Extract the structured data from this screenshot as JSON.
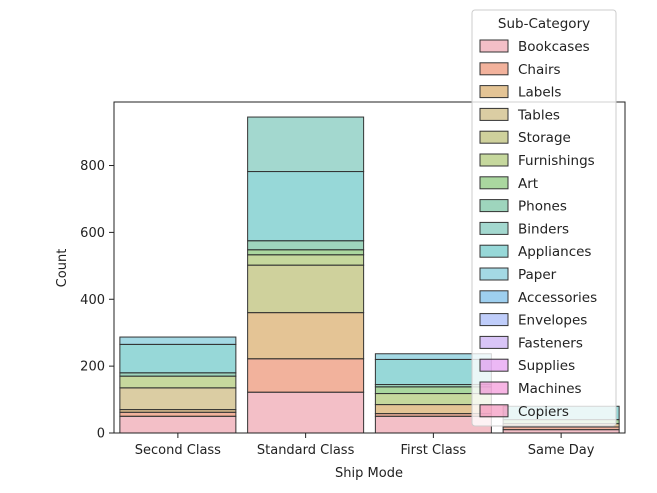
{
  "chart_data": {
    "type": "bar",
    "stacked": true,
    "overlapping": true,
    "xlabel": "Ship Mode",
    "ylabel": "Count",
    "categories": [
      "Second Class",
      "Standard Class",
      "First Class",
      "Same Day"
    ],
    "ylim": [
      0,
      990
    ],
    "yticks": [
      0,
      200,
      400,
      600,
      800
    ],
    "grid": false,
    "legend": {
      "title": "Sub-Category",
      "placement": "upper-right",
      "entries": [
        {
          "name": "Bookcases",
          "color": "#e8808f"
        },
        {
          "name": "Chairs",
          "color": "#e5663a"
        },
        {
          "name": "Labels",
          "color": "#c98a2c"
        },
        {
          "name": "Tables",
          "color": "#b89c48"
        },
        {
          "name": "Storage",
          "color": "#a0a33a"
        },
        {
          "name": "Furnishings",
          "color": "#8eb13c"
        },
        {
          "name": "Art",
          "color": "#55b040"
        },
        {
          "name": "Phones",
          "color": "#3dab7c"
        },
        {
          "name": "Binders",
          "color": "#47b2a0"
        },
        {
          "name": "Appliances",
          "color": "#2fb1b1"
        },
        {
          "name": "Paper",
          "color": "#4ab4c9"
        },
        {
          "name": "Accessories",
          "color": "#3d9fe0"
        },
        {
          "name": "Envelopes",
          "color": "#7f9cf5"
        },
        {
          "name": "Fasteners",
          "color": "#b38cf0"
        },
        {
          "name": "Supplies",
          "color": "#d972ec"
        },
        {
          "name": "Machines",
          "color": "#ef6cc9"
        },
        {
          "name": "Copiers",
          "color": "#f06ca6"
        }
      ]
    },
    "stacks": [
      {
        "category": "Second Class",
        "segments": [
          {
            "color": "#e8808f",
            "bottom": 0,
            "top": 50
          },
          {
            "color": "#e5663a",
            "bottom": 50,
            "top": 62
          },
          {
            "color": "#c98a2c",
            "bottom": 62,
            "top": 70
          },
          {
            "color": "#b89c48",
            "bottom": 70,
            "top": 135
          },
          {
            "color": "#8eb13c",
            "bottom": 135,
            "top": 170
          },
          {
            "color": "#3dab7c",
            "bottom": 170,
            "top": 180
          },
          {
            "color": "#2fb1b1",
            "bottom": 180,
            "top": 265
          },
          {
            "color": "#4ab4c9",
            "bottom": 265,
            "top": 287
          }
        ]
      },
      {
        "category": "Standard Class",
        "segments": [
          {
            "color": "#e8808f",
            "bottom": 0,
            "top": 122
          },
          {
            "color": "#e5663a",
            "bottom": 122,
            "top": 222
          },
          {
            "color": "#c98a2c",
            "bottom": 222,
            "top": 360
          },
          {
            "color": "#a0a33a",
            "bottom": 360,
            "top": 502
          },
          {
            "color": "#8eb13c",
            "bottom": 502,
            "top": 533
          },
          {
            "color": "#55b040",
            "bottom": 533,
            "top": 548
          },
          {
            "color": "#3dab7c",
            "bottom": 548,
            "top": 575
          },
          {
            "color": "#2fb1b1",
            "bottom": 575,
            "top": 782
          },
          {
            "color": "#47b2a0",
            "bottom": 782,
            "top": 945
          }
        ]
      },
      {
        "category": "First Class",
        "segments": [
          {
            "color": "#e8808f",
            "bottom": 0,
            "top": 50
          },
          {
            "color": "#e5663a",
            "bottom": 50,
            "top": 58
          },
          {
            "color": "#c98a2c",
            "bottom": 58,
            "top": 85
          },
          {
            "color": "#8eb13c",
            "bottom": 85,
            "top": 118
          },
          {
            "color": "#55b040",
            "bottom": 118,
            "top": 138
          },
          {
            "color": "#3dab7c",
            "bottom": 138,
            "top": 145
          },
          {
            "color": "#2fb1b1",
            "bottom": 145,
            "top": 220
          },
          {
            "color": "#4ab4c9",
            "bottom": 220,
            "top": 237
          }
        ]
      },
      {
        "category": "Same Day",
        "segments": [
          {
            "color": "#e8808f",
            "bottom": 0,
            "top": 10
          },
          {
            "color": "#e5663a",
            "bottom": 10,
            "top": 18
          },
          {
            "color": "#c98a2c",
            "bottom": 18,
            "top": 28
          },
          {
            "color": "#55b040",
            "bottom": 28,
            "top": 40
          },
          {
            "color": "#2fb1b1",
            "bottom": 40,
            "top": 80
          }
        ]
      }
    ]
  }
}
